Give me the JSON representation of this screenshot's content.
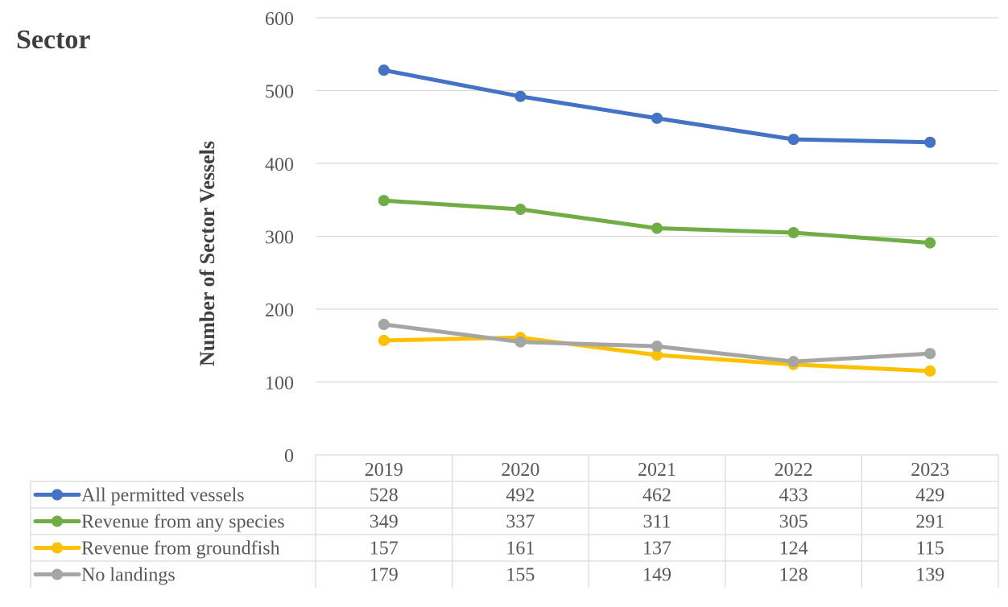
{
  "chart_data": {
    "type": "line",
    "title": "Sector",
    "ylabel": "Number of Sector Vessels",
    "xlabel": "",
    "ylim": [
      0,
      600
    ],
    "yticks": [
      0,
      100,
      200,
      300,
      400,
      500,
      600
    ],
    "grid": true,
    "legend": "data-table-below",
    "categories": [
      "2019",
      "2020",
      "2021",
      "2022",
      "2023"
    ],
    "series": [
      {
        "name": "All permitted vessels",
        "color": "#4472C4",
        "values": [
          528,
          492,
          462,
          433,
          429
        ]
      },
      {
        "name": "Revenue from any species",
        "color": "#70AD47",
        "values": [
          349,
          337,
          311,
          305,
          291
        ]
      },
      {
        "name": "Revenue from groundfish",
        "color": "#FFC000",
        "values": [
          157,
          161,
          137,
          124,
          115
        ]
      },
      {
        "name": "No landings",
        "color": "#A5A5A5",
        "values": [
          179,
          155,
          149,
          128,
          139
        ]
      }
    ]
  }
}
